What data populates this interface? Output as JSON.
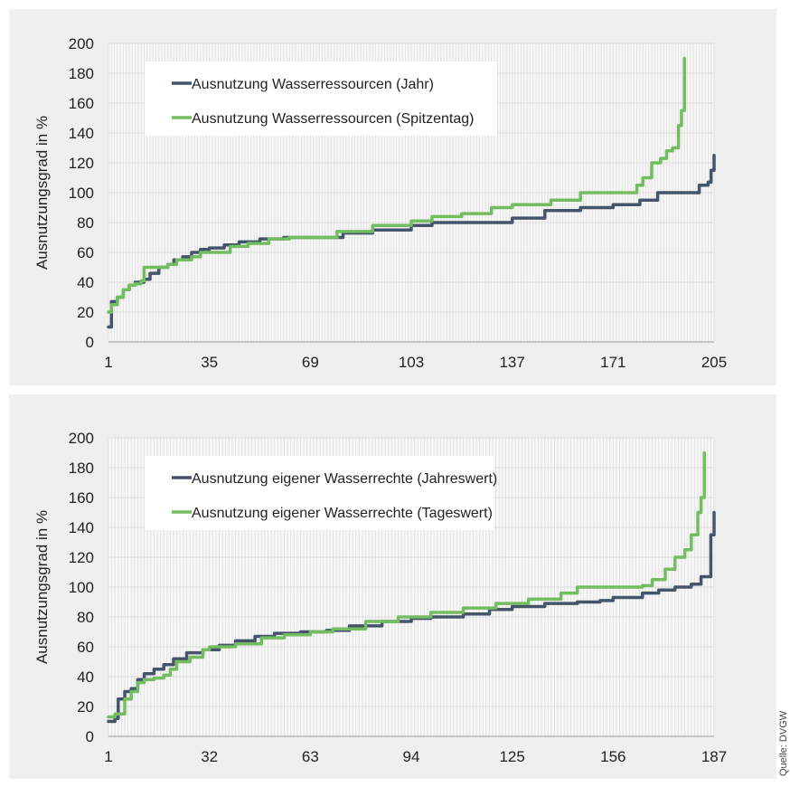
{
  "source_note": "Quelle: DVGW",
  "chart_data": [
    {
      "type": "line",
      "ylabel": "Ausnutzungsgrad in %",
      "xlabel": "",
      "ylim": [
        0,
        200
      ],
      "yticks": [
        0,
        20,
        40,
        60,
        80,
        100,
        120,
        140,
        160,
        180,
        200
      ],
      "xlim": [
        1,
        205
      ],
      "xticks": [
        1,
        35,
        69,
        103,
        137,
        171,
        205
      ],
      "grid": true,
      "legend_position": "top-left",
      "series": [
        {
          "name": "Ausnutzung Wasserressourcen (Jahr)",
          "color": "#44546a",
          "points": [
            [
              1,
              10
            ],
            [
              2,
              27
            ],
            [
              4,
              30
            ],
            [
              6,
              35
            ],
            [
              8,
              38
            ],
            [
              10,
              40
            ],
            [
              13,
              42
            ],
            [
              15,
              46
            ],
            [
              18,
              50
            ],
            [
              21,
              52
            ],
            [
              23,
              55
            ],
            [
              26,
              57
            ],
            [
              29,
              60
            ],
            [
              32,
              62
            ],
            [
              35,
              63
            ],
            [
              40,
              65
            ],
            [
              45,
              67
            ],
            [
              52,
              69
            ],
            [
              60,
              70
            ],
            [
              69,
              70
            ],
            [
              80,
              73
            ],
            [
              90,
              75
            ],
            [
              103,
              78
            ],
            [
              110,
              80
            ],
            [
              125,
              80
            ],
            [
              137,
              83
            ],
            [
              148,
              88
            ],
            [
              160,
              90
            ],
            [
              171,
              92
            ],
            [
              180,
              95
            ],
            [
              186,
              100
            ],
            [
              195,
              100
            ],
            [
              200,
              105
            ],
            [
              203,
              107
            ],
            [
              204,
              115
            ],
            [
              205,
              125
            ]
          ]
        },
        {
          "name": "Ausnutzung Wasserressourcen (Spitzentag)",
          "color": "#72bd5f",
          "points": [
            [
              1,
              20
            ],
            [
              2,
              25
            ],
            [
              4,
              30
            ],
            [
              6,
              35
            ],
            [
              8,
              38
            ],
            [
              10,
              39
            ],
            [
              12,
              41
            ],
            [
              13,
              50
            ],
            [
              17,
              50
            ],
            [
              21,
              52
            ],
            [
              24,
              55
            ],
            [
              29,
              57
            ],
            [
              32,
              60
            ],
            [
              39,
              60
            ],
            [
              42,
              64
            ],
            [
              48,
              66
            ],
            [
              55,
              69
            ],
            [
              62,
              70
            ],
            [
              69,
              70
            ],
            [
              78,
              74
            ],
            [
              90,
              78
            ],
            [
              103,
              81
            ],
            [
              110,
              84
            ],
            [
              120,
              86
            ],
            [
              130,
              90
            ],
            [
              137,
              92
            ],
            [
              150,
              95
            ],
            [
              160,
              100
            ],
            [
              171,
              100
            ],
            [
              176,
              100
            ],
            [
              179,
              105
            ],
            [
              181,
              110
            ],
            [
              184,
              120
            ],
            [
              187,
              123
            ],
            [
              189,
              128
            ],
            [
              191,
              130
            ],
            [
              192,
              130
            ],
            [
              193,
              145
            ],
            [
              194,
              155
            ],
            [
              195,
              190
            ]
          ]
        }
      ]
    },
    {
      "type": "line",
      "ylabel": "Ausnutzungsgrad in %",
      "xlabel": "",
      "ylim": [
        0,
        200
      ],
      "yticks": [
        0,
        20,
        40,
        60,
        80,
        100,
        120,
        140,
        160,
        180,
        200
      ],
      "xlim": [
        1,
        187
      ],
      "xticks": [
        1,
        32,
        63,
        94,
        125,
        156,
        187
      ],
      "grid": true,
      "legend_position": "top-left",
      "series": [
        {
          "name": "Ausnutzung eigener Wasserrechte (Jahreswert)",
          "color": "#44546a",
          "points": [
            [
              1,
              10
            ],
            [
              3,
              12
            ],
            [
              4,
              25
            ],
            [
              6,
              30
            ],
            [
              8,
              32
            ],
            [
              10,
              38
            ],
            [
              12,
              42
            ],
            [
              15,
              45
            ],
            [
              18,
              48
            ],
            [
              21,
              52
            ],
            [
              25,
              56
            ],
            [
              30,
              58
            ],
            [
              35,
              61
            ],
            [
              40,
              64
            ],
            [
              46,
              67
            ],
            [
              52,
              69
            ],
            [
              60,
              70
            ],
            [
              68,
              71
            ],
            [
              75,
              74
            ],
            [
              85,
              77
            ],
            [
              94,
              79
            ],
            [
              100,
              80
            ],
            [
              110,
              82
            ],
            [
              118,
              85
            ],
            [
              125,
              87
            ],
            [
              135,
              89
            ],
            [
              145,
              90
            ],
            [
              152,
              91
            ],
            [
              156,
              93
            ],
            [
              165,
              96
            ],
            [
              170,
              98
            ],
            [
              175,
              100
            ],
            [
              180,
              102
            ],
            [
              183,
              107
            ],
            [
              185,
              107
            ],
            [
              186,
              135
            ],
            [
              187,
              150
            ]
          ]
        },
        {
          "name": "Ausnutzung eigener Wasserrechte (Tageswert)",
          "color": "#72bd5f",
          "points": [
            [
              1,
              13
            ],
            [
              3,
              15
            ],
            [
              5,
              15
            ],
            [
              6,
              25
            ],
            [
              8,
              30
            ],
            [
              10,
              36
            ],
            [
              12,
              38
            ],
            [
              15,
              39
            ],
            [
              18,
              41
            ],
            [
              20,
              45
            ],
            [
              22,
              50
            ],
            [
              26,
              53
            ],
            [
              30,
              58
            ],
            [
              32,
              60
            ],
            [
              40,
              62
            ],
            [
              48,
              66
            ],
            [
              55,
              68
            ],
            [
              63,
              70
            ],
            [
              70,
              72
            ],
            [
              80,
              77
            ],
            [
              90,
              80
            ],
            [
              100,
              83
            ],
            [
              110,
              86
            ],
            [
              120,
              89
            ],
            [
              130,
              92
            ],
            [
              140,
              96
            ],
            [
              145,
              100
            ],
            [
              156,
              100
            ],
            [
              165,
              101
            ],
            [
              168,
              105
            ],
            [
              172,
              112
            ],
            [
              175,
              120
            ],
            [
              178,
              125
            ],
            [
              180,
              135
            ],
            [
              182,
              150
            ],
            [
              183,
              160
            ],
            [
              184,
              190
            ]
          ]
        }
      ]
    }
  ]
}
